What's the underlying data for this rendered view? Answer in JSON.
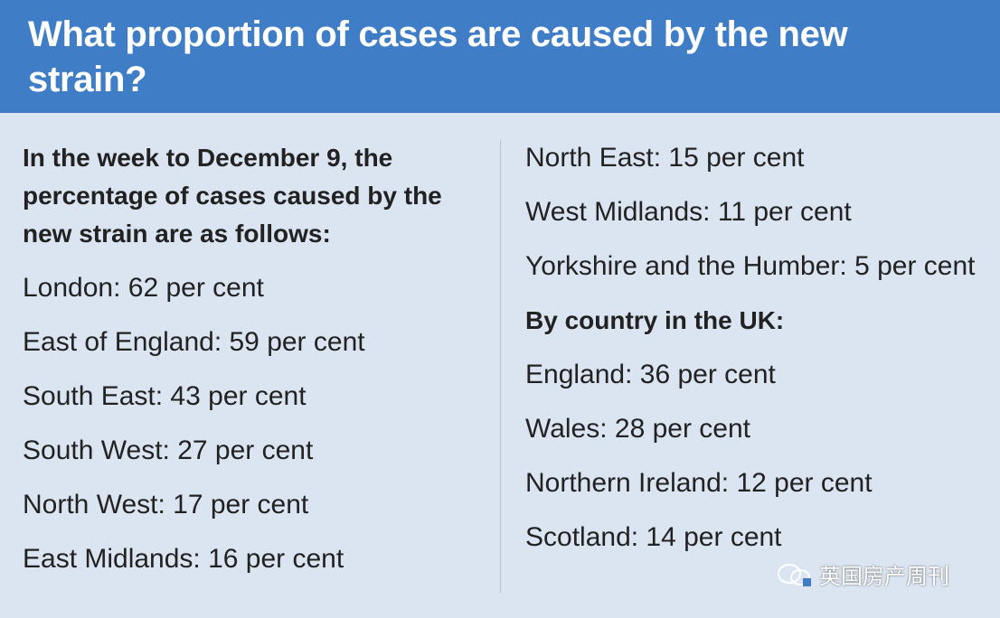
{
  "header": {
    "title": "What proportion of cases are caused by the new strain?"
  },
  "left_column": {
    "intro": "In the week to December 9, the percentage of cases caused by the new strain are as follows:",
    "items": [
      "London: 62 per cent",
      "East of England: 59 per cent",
      "South East: 43 per cent",
      "South West: 27 per cent",
      "North West: 17 per cent",
      "East Midlands: 16 per cent"
    ]
  },
  "right_column": {
    "items": [
      "North East: 15 per cent",
      "West Midlands: 11 per cent",
      "Yorkshire and the Humber: 5 per cent"
    ],
    "heading": "By country in the UK:",
    "country_items": [
      "England: 36 per cent",
      "Wales: 28 per cent",
      "Northern Ireland: 12 per cent",
      "Scotland: 14 per cent"
    ]
  },
  "watermark": "英国房产周刊"
}
